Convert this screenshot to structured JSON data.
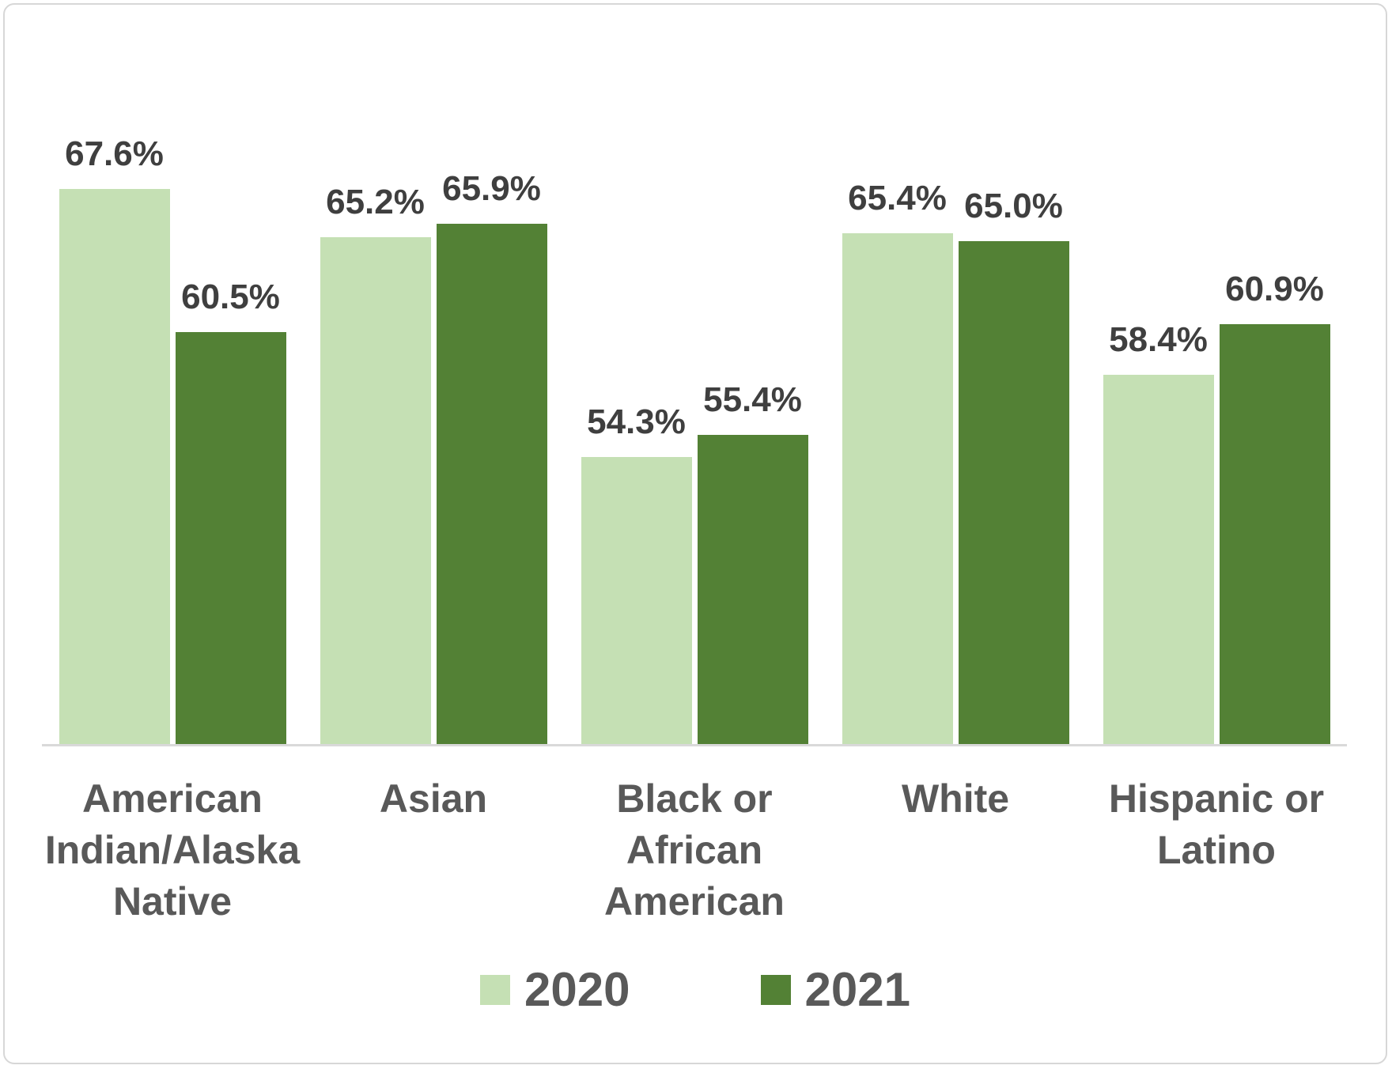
{
  "chart_data": {
    "type": "bar",
    "categories": [
      "American Indian/Alaska Native",
      "Asian",
      "Black or African American",
      "White",
      "Hispanic or Latino"
    ],
    "category_display_lines": [
      [
        "American",
        "Indian/Alaska",
        "Native"
      ],
      [
        "Asian"
      ],
      [
        "Black or",
        "African",
        "American"
      ],
      [
        "White"
      ],
      [
        "Hispanic or",
        "Latino"
      ]
    ],
    "series": [
      {
        "name": "2020",
        "color": "#C5E0B4",
        "values": [
          67.6,
          65.2,
          54.3,
          65.4,
          58.4
        ],
        "labels": [
          "67.6%",
          "65.2%",
          "54.3%",
          "65.4%",
          "58.4%"
        ]
      },
      {
        "name": "2021",
        "color": "#538135",
        "values": [
          60.5,
          65.9,
          55.4,
          65.0,
          60.9
        ],
        "labels": [
          "60.5%",
          "65.9%",
          "55.4%",
          "65.0%",
          "60.9%"
        ]
      }
    ],
    "title": "",
    "xlabel": "",
    "ylabel": "",
    "ylim": [
      40,
      70
    ],
    "y_axis_visible": false,
    "gridlines": false,
    "data_labels": true,
    "legend_position": "bottom"
  },
  "legend": {
    "items": [
      {
        "label": "2020",
        "color": "#C5E0B4"
      },
      {
        "label": "2021",
        "color": "#538135"
      }
    ]
  },
  "styles": {
    "axis_line_color": "#D9D9D9",
    "data_label_color": "#3F3F3F",
    "category_label_color": "#595959",
    "legend_label_color": "#595959",
    "frame_border_color": "#D7D7D7",
    "background": "#FFFFFF"
  }
}
